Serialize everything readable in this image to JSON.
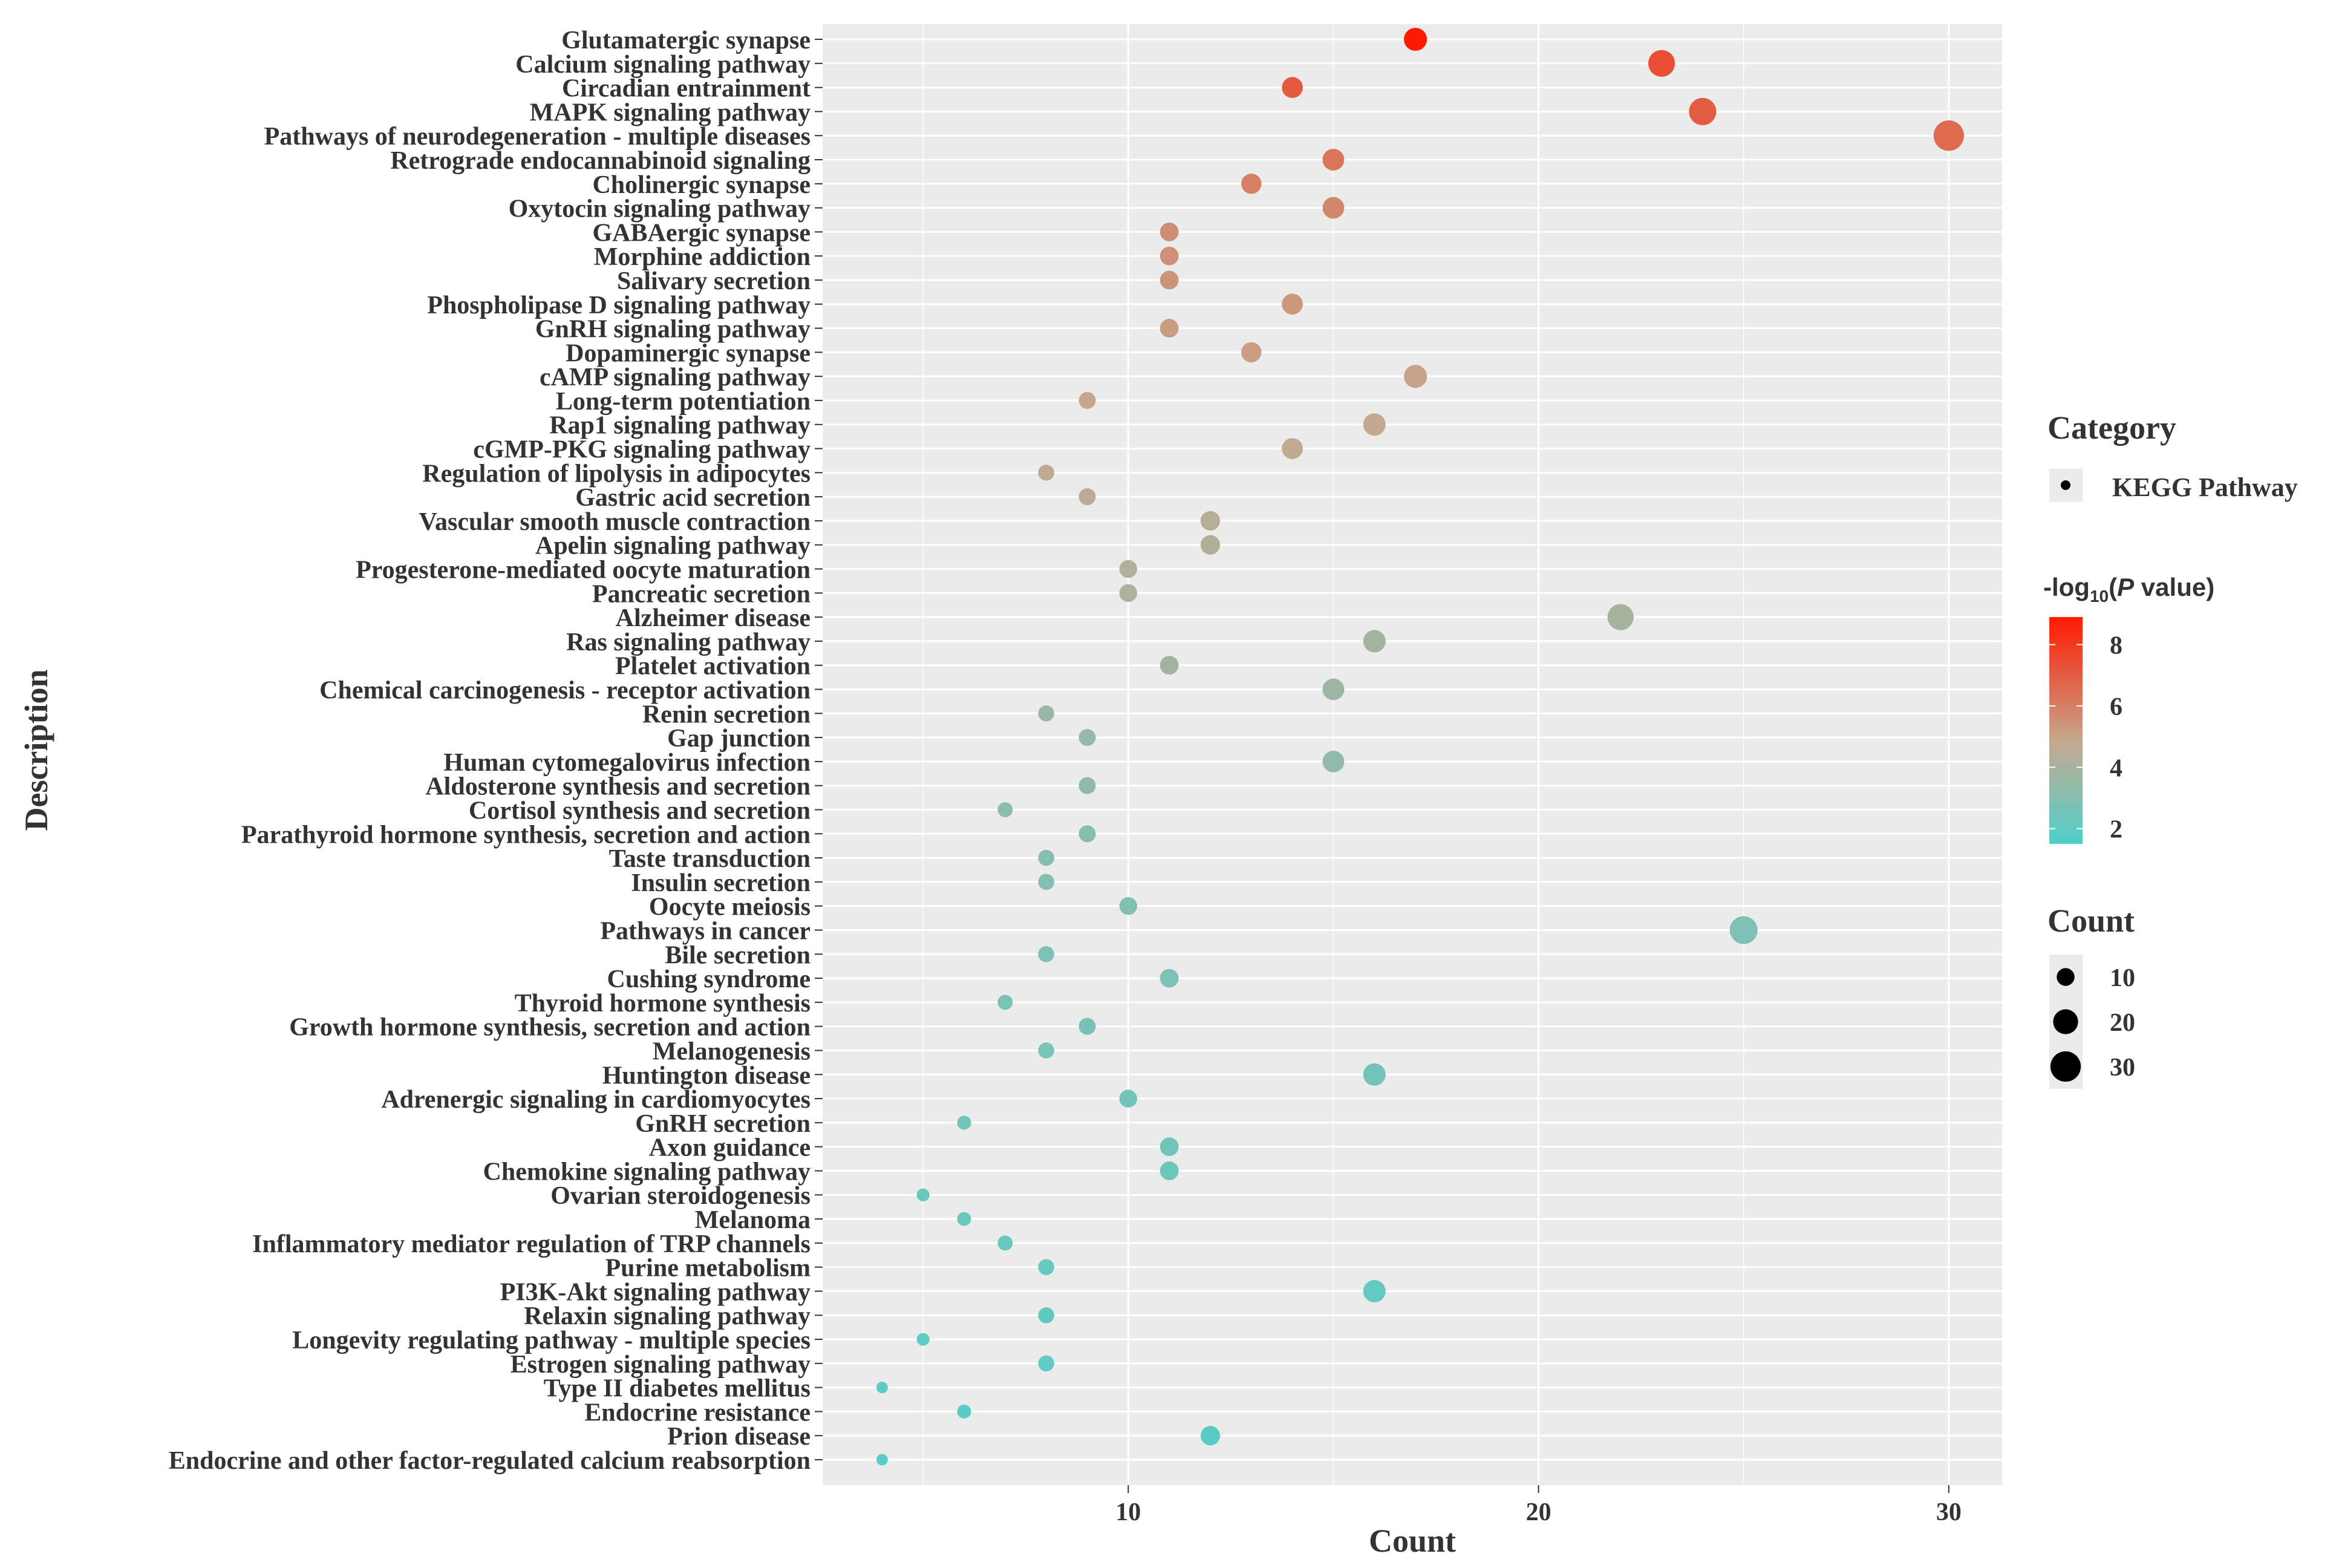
{
  "chart_data": {
    "type": "scatter",
    "xlabel": "Count",
    "ylabel": "Description",
    "xlim": [
      3.4,
      31.3
    ],
    "x_ticks": [
      10,
      20,
      30
    ],
    "grid": true,
    "categories": [
      "Glutamatergic synapse",
      "Calcium signaling pathway",
      "Circadian entrainment",
      "MAPK signaling pathway",
      "Pathways of neurodegeneration - multiple diseases",
      "Retrograde endocannabinoid signaling",
      "Cholinergic synapse",
      "Oxytocin signaling pathway",
      "GABAergic synapse",
      "Morphine addiction",
      "Salivary secretion",
      "Phospholipase D signaling pathway",
      "GnRH signaling pathway",
      "Dopaminergic synapse",
      "cAMP signaling pathway",
      "Long-term potentiation",
      "Rap1 signaling pathway",
      "cGMP-PKG signaling pathway",
      "Regulation of lipolysis in adipocytes",
      "Gastric acid secretion",
      "Vascular smooth muscle contraction",
      "Apelin signaling pathway",
      "Progesterone-mediated oocyte maturation",
      "Pancreatic secretion",
      "Alzheimer disease",
      "Ras signaling pathway",
      "Platelet activation",
      "Chemical carcinogenesis - receptor activation",
      "Renin secretion",
      "Gap junction",
      "Human cytomegalovirus infection",
      "Aldosterone synthesis and secretion",
      "Cortisol synthesis and secretion",
      "Parathyroid hormone synthesis, secretion and action",
      "Taste transduction",
      "Insulin secretion",
      "Oocyte meiosis",
      "Pathways in cancer",
      "Bile secretion",
      "Cushing syndrome",
      "Thyroid hormone synthesis",
      "Growth hormone synthesis, secretion and action",
      "Melanogenesis",
      "Huntington disease",
      "Adrenergic signaling in cardiomyocytes",
      "GnRH secretion",
      "Axon guidance",
      "Chemokine signaling pathway",
      "Ovarian steroidogenesis",
      "Melanoma",
      "Inflammatory mediator regulation of TRP channels",
      "Purine metabolism",
      "PI3K-Akt signaling pathway",
      "Relaxin signaling pathway",
      "Longevity regulating pathway - multiple species",
      "Estrogen signaling pathway",
      "Type II diabetes mellitus",
      "Endocrine resistance",
      "Prion disease",
      "Endocrine and other factor-regulated calcium reabsorption"
    ],
    "counts": [
      17,
      23,
      14,
      24,
      30,
      15,
      13,
      15,
      11,
      11,
      11,
      14,
      11,
      13,
      17,
      9,
      16,
      14,
      8,
      9,
      12,
      12,
      10,
      10,
      22,
      16,
      11,
      15,
      8,
      9,
      15,
      9,
      7,
      9,
      8,
      8,
      10,
      25,
      8,
      11,
      7,
      9,
      8,
      16,
      10,
      6,
      11,
      11,
      5,
      6,
      7,
      8,
      16,
      8,
      5,
      8,
      4,
      6,
      12,
      4
    ],
    "neg_log10_p": [
      8.9,
      7.4,
      7.1,
      7.0,
      6.6,
      6.3,
      6.0,
      5.8,
      5.6,
      5.5,
      5.4,
      5.3,
      5.2,
      5.1,
      5.0,
      4.9,
      4.8,
      4.7,
      4.6,
      4.5,
      4.4,
      4.3,
      4.2,
      4.1,
      4.0,
      3.9,
      3.8,
      3.7,
      3.6,
      3.5,
      3.4,
      3.3,
      3.2,
      3.1,
      3.05,
      3.0,
      2.9,
      2.85,
      2.8,
      2.75,
      2.7,
      2.65,
      2.6,
      2.55,
      2.5,
      2.45,
      2.4,
      2.35,
      2.3,
      2.25,
      2.2,
      2.15,
      2.1,
      2.05,
      2.0,
      1.95,
      1.9,
      1.85,
      1.8,
      1.75
    ],
    "legend_category": {
      "title": "Category",
      "items": [
        "KEGG Pathway"
      ]
    },
    "legend_color": {
      "title_prefix": "-log",
      "title_sub": "10",
      "title_open": "(",
      "title_italic": "P",
      "title_suffix": " value)",
      "ticks": [
        2,
        4,
        6,
        8
      ],
      "range": [
        1.5,
        8.9
      ],
      "low_color": "#4fd0cc",
      "mid_color": "#c4a88e",
      "high_color": "#ff1a00"
    },
    "legend_size": {
      "title": "Count",
      "values": [
        10,
        20,
        30
      ]
    },
    "panel_background": "#ebebeb",
    "grid_color": "#ffffff"
  }
}
